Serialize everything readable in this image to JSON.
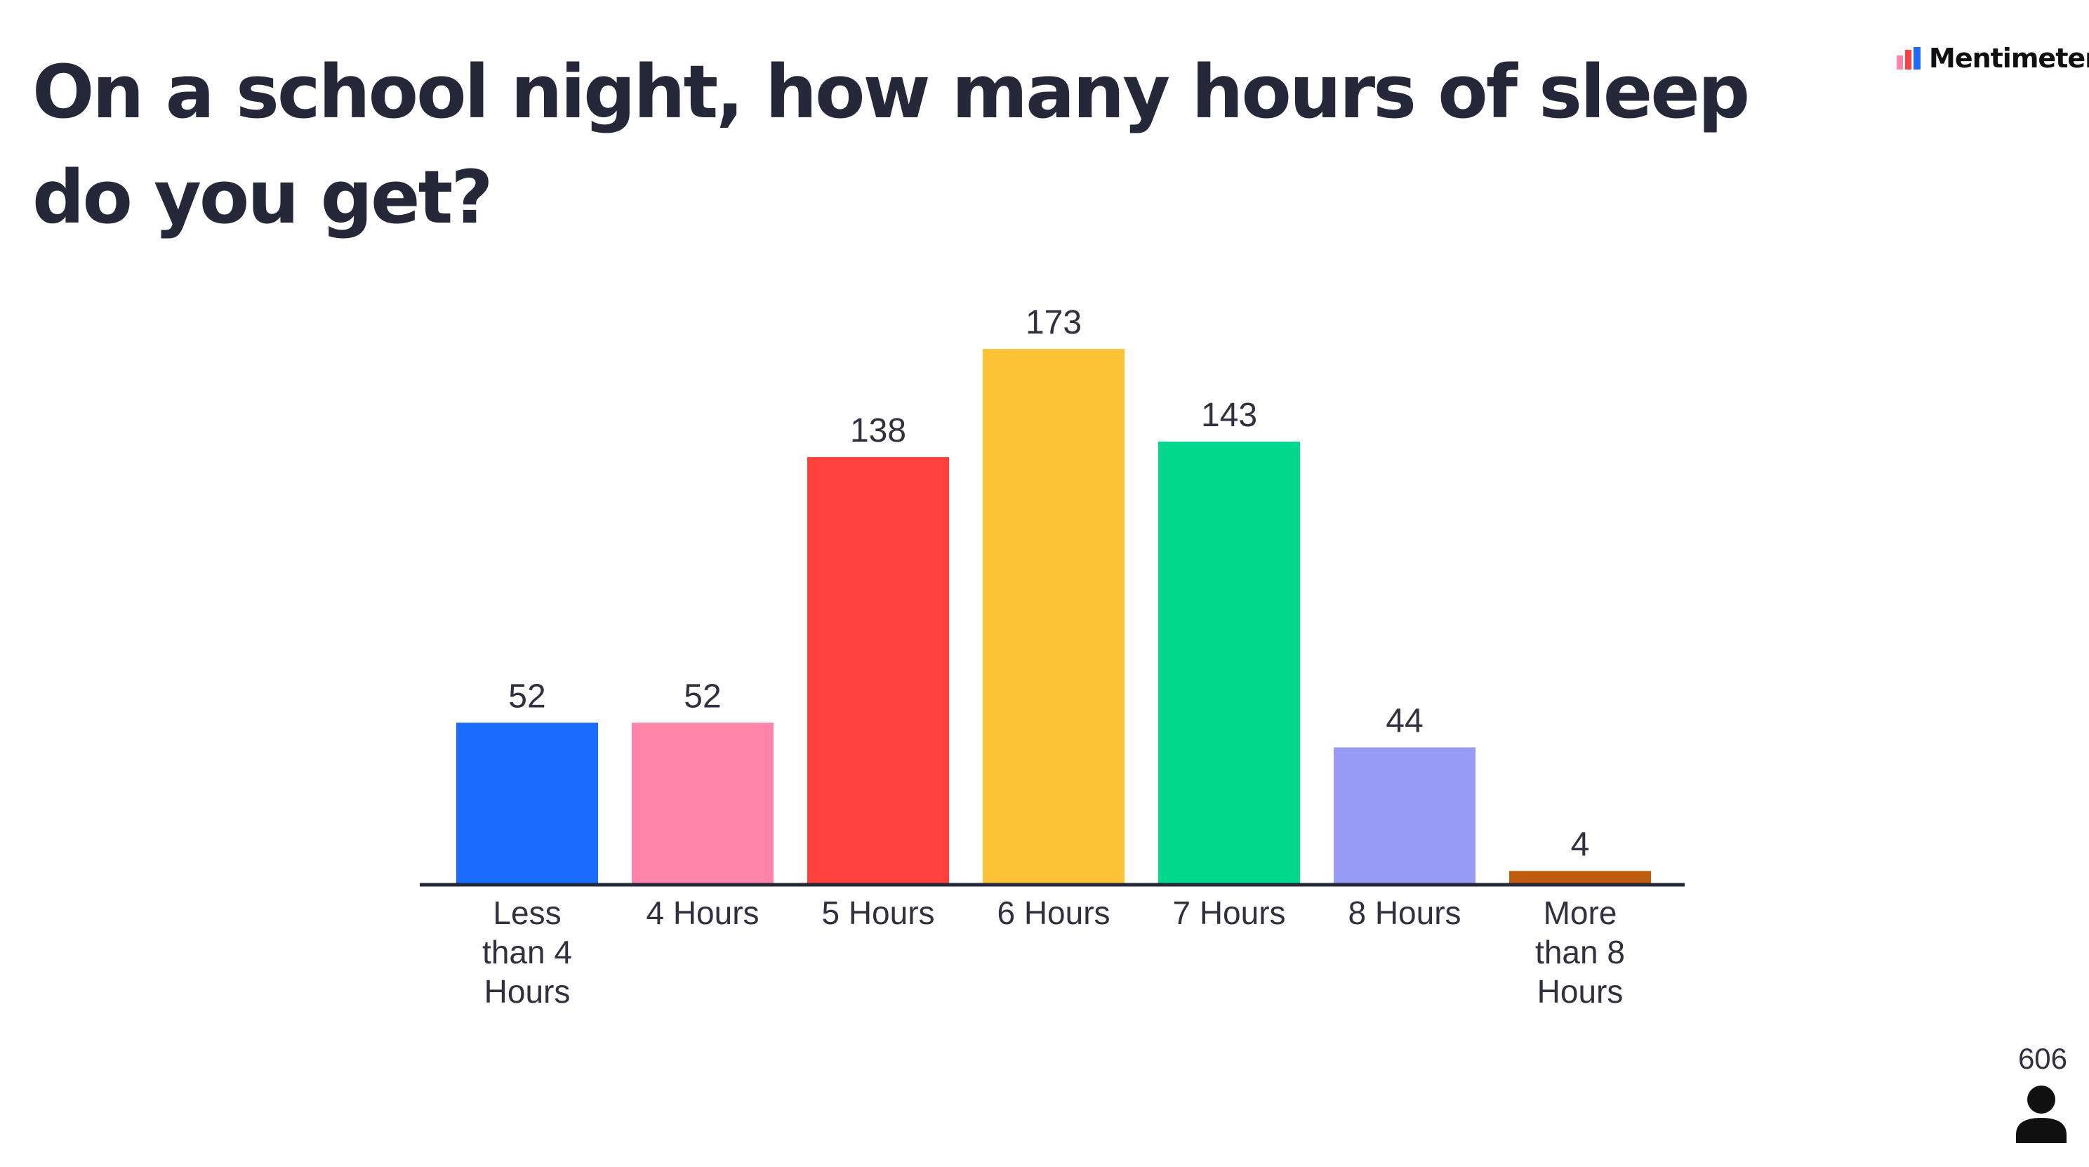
{
  "question": "On a school night, how many hours of sleep do you get?",
  "brand": {
    "name": "Mentimeter",
    "logo_icon": "mentimeter-logo-icon"
  },
  "participants": {
    "count": "606",
    "icon": "person-icon"
  },
  "chart_data": {
    "type": "bar",
    "categories": [
      "Less than 4 Hours",
      "4 Hours",
      "5 Hours",
      "6 Hours",
      "7 Hours",
      "8 Hours",
      "More than 8 Hours"
    ],
    "category_lines": [
      [
        "Less",
        "than 4",
        "Hours"
      ],
      [
        "4 Hours"
      ],
      [
        "5 Hours"
      ],
      [
        "6 Hours"
      ],
      [
        "7 Hours"
      ],
      [
        "8 Hours"
      ],
      [
        "More",
        "than 8",
        "Hours"
      ]
    ],
    "values": [
      52,
      52,
      138,
      173,
      143,
      44,
      4
    ],
    "colors": [
      "#196cff",
      "#ff84aa",
      "#ff403d",
      "#ffc337",
      "#00d88e",
      "#989bf6",
      "#bf5c0d"
    ],
    "title": "",
    "xlabel": "",
    "ylabel": "",
    "ylim": [
      0,
      173
    ],
    "grid": false,
    "legend": "none"
  }
}
